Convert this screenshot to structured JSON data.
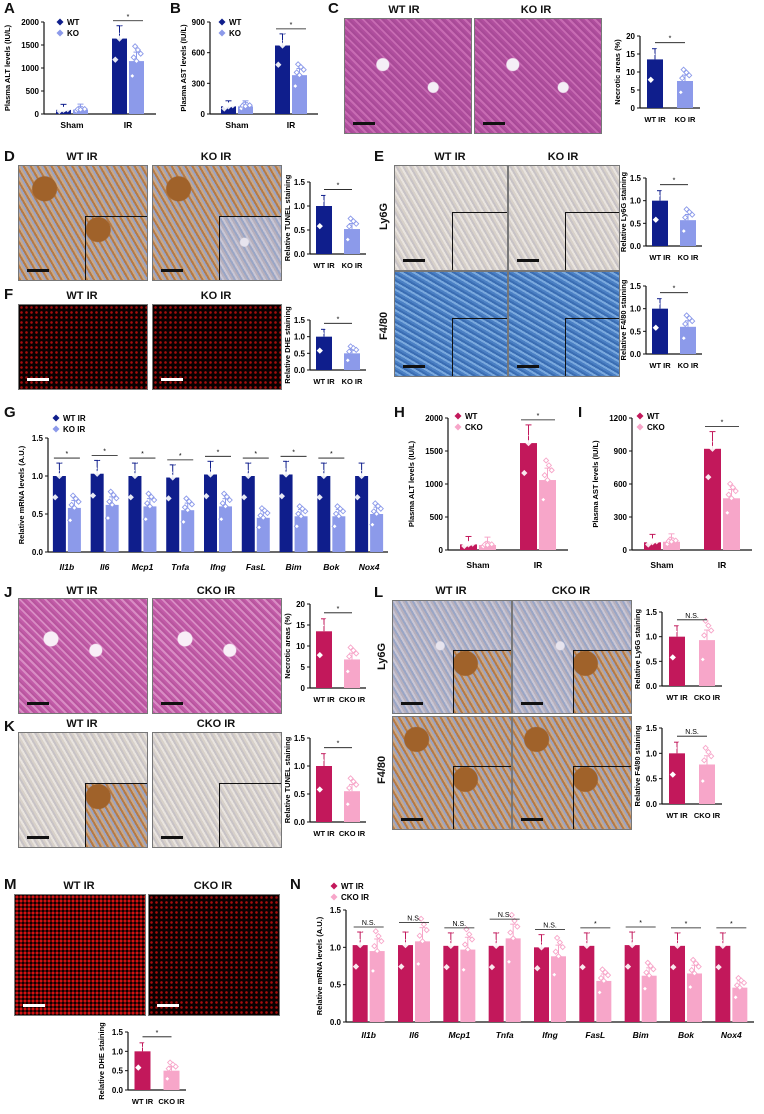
{
  "colors": {
    "wt_blue": "#0f1e8c",
    "ko_blue": "#8c9aea",
    "wt_pink": "#c2185b",
    "cko_pink": "#f7a6c9"
  },
  "labels": {
    "A": "A",
    "B": "B",
    "C": "C",
    "D": "D",
    "E": "E",
    "F": "F",
    "G": "G",
    "H": "H",
    "I": "I",
    "J": "J",
    "K": "K",
    "L": "L",
    "M": "M",
    "N": "N"
  },
  "image_titles": {
    "wt_ir": "WT IR",
    "ko_ir": "KO IR",
    "cko_ir": "CKO IR",
    "ly6g": "Ly6G",
    "f480": "F4/80"
  },
  "chart_data": [
    {
      "id": "A",
      "type": "bar",
      "ylabel": "Plasma ALT levels (IU/L)",
      "categories": [
        "Sham",
        "IR"
      ],
      "ylim": [
        0,
        2000
      ],
      "yticks": [
        0,
        500,
        1000,
        1500,
        2000
      ],
      "series": [
        {
          "name": "WT",
          "values": [
            90,
            1640
          ]
        },
        {
          "name": "KO",
          "values": [
            95,
            1150
          ]
        }
      ],
      "sig": "*"
    },
    {
      "id": "B",
      "type": "bar",
      "ylabel": "Plasma AST levels (IU/L)",
      "categories": [
        "Sham",
        "IR"
      ],
      "ylim": [
        0,
        900
      ],
      "yticks": [
        0,
        300,
        600,
        900
      ],
      "series": [
        {
          "name": "WT",
          "values": [
            75,
            670
          ]
        },
        {
          "name": "KO",
          "values": [
            75,
            380
          ]
        }
      ],
      "sig": "*"
    },
    {
      "id": "C",
      "type": "bar",
      "ylabel": "Necrotic areas (%)",
      "categories": [
        "WT IR",
        "KO IR"
      ],
      "ylim": [
        0,
        20
      ],
      "yticks": [
        0,
        5,
        10,
        15,
        20
      ],
      "values": [
        13.5,
        7.5
      ],
      "sig": "*"
    },
    {
      "id": "D",
      "type": "bar",
      "ylabel": "Relative TUNEL staining",
      "categories": [
        "WT IR",
        "KO IR"
      ],
      "ylim": [
        0,
        1.5
      ],
      "yticks": [
        0.0,
        0.5,
        1.0,
        1.5
      ],
      "values": [
        1.0,
        0.52
      ],
      "sig": "*"
    },
    {
      "id": "E1",
      "type": "bar",
      "ylabel": "Relative Ly6G staining",
      "categories": [
        "WT IR",
        "KO IR"
      ],
      "ylim": [
        0,
        1.5
      ],
      "yticks": [
        0.0,
        0.5,
        1.0,
        1.5
      ],
      "values": [
        1.0,
        0.57
      ],
      "sig": "*"
    },
    {
      "id": "E2",
      "type": "bar",
      "ylabel": "Relative F4/80 staining",
      "categories": [
        "WT IR",
        "KO IR"
      ],
      "ylim": [
        0,
        1.5
      ],
      "yticks": [
        0.0,
        0.5,
        1.0,
        1.5
      ],
      "values": [
        1.0,
        0.6
      ],
      "sig": "*"
    },
    {
      "id": "F",
      "type": "bar",
      "ylabel": "Relative DHE staining",
      "categories": [
        "WT IR",
        "KO IR"
      ],
      "ylim": [
        0,
        1.5
      ],
      "yticks": [
        0.0,
        0.5,
        1.0,
        1.5
      ],
      "values": [
        1.0,
        0.5
      ],
      "sig": "*"
    },
    {
      "id": "G",
      "type": "bar",
      "ylabel": "Relative mRNA levels (A.U.)",
      "categories": [
        "Il1b",
        "Il6",
        "Mcp1",
        "Tnfa",
        "Ifng",
        "FasL",
        "Bim",
        "Bok",
        "Nox4"
      ],
      "ylim": [
        0,
        1.5
      ],
      "yticks": [
        0.0,
        0.5,
        1.0,
        1.5
      ],
      "series": [
        {
          "name": "WT IR",
          "values": [
            1.0,
            1.03,
            1.0,
            0.98,
            1.02,
            1.0,
            1.02,
            1.0,
            1.0
          ]
        },
        {
          "name": "KO IR",
          "values": [
            0.58,
            0.62,
            0.6,
            0.55,
            0.6,
            0.45,
            0.47,
            0.47,
            0.5
          ]
        }
      ],
      "sig": [
        "*",
        "*",
        "*",
        "*",
        "*",
        "*",
        "*",
        "*",
        ""
      ]
    },
    {
      "id": "H",
      "type": "bar",
      "ylabel": "Plasma ALT levels (IU/L)",
      "categories": [
        "Sham",
        "IR"
      ],
      "ylim": [
        0,
        2000
      ],
      "yticks": [
        0,
        500,
        1000,
        1500,
        2000
      ],
      "series": [
        {
          "name": "WT",
          "values": [
            85,
            1620
          ]
        },
        {
          "name": "CKO",
          "values": [
            75,
            1060
          ]
        }
      ],
      "sig": "*"
    },
    {
      "id": "I",
      "type": "bar",
      "ylabel": "Plasma AST levels (IU/L)",
      "categories": [
        "Sham",
        "IR"
      ],
      "ylim": [
        0,
        1200
      ],
      "yticks": [
        0,
        300,
        600,
        900,
        1200
      ],
      "series": [
        {
          "name": "WT",
          "values": [
            70,
            920
          ]
        },
        {
          "name": "CKO",
          "values": [
            75,
            470
          ]
        }
      ],
      "sig": "*"
    },
    {
      "id": "J",
      "type": "bar",
      "ylabel": "Necrotic areas (%)",
      "categories": [
        "WT IR",
        "CKO IR"
      ],
      "ylim": [
        0,
        20
      ],
      "yticks": [
        0,
        5,
        10,
        15,
        20
      ],
      "values": [
        13.5,
        6.8
      ],
      "sig": "*"
    },
    {
      "id": "K",
      "type": "bar",
      "ylabel": "Relative TUNEL staining",
      "categories": [
        "WT IR",
        "CKO IR"
      ],
      "ylim": [
        0,
        1.5
      ],
      "yticks": [
        0.0,
        0.5,
        1.0,
        1.5
      ],
      "values": [
        1.0,
        0.55
      ],
      "sig": "*"
    },
    {
      "id": "L1",
      "type": "bar",
      "ylabel": "Relative Ly6G staining",
      "categories": [
        "WT IR",
        "CKO IR"
      ],
      "ylim": [
        0,
        1.5
      ],
      "yticks": [
        0.0,
        0.5,
        1.0,
        1.5
      ],
      "values": [
        1.0,
        0.93
      ],
      "sig": "N.S."
    },
    {
      "id": "L2",
      "type": "bar",
      "ylabel": "Relative F4/80 staining",
      "categories": [
        "WT IR",
        "CKO IR"
      ],
      "ylim": [
        0,
        1.5
      ],
      "yticks": [
        0.0,
        0.5,
        1.0,
        1.5
      ],
      "values": [
        1.0,
        0.78
      ],
      "sig": "N.S."
    },
    {
      "id": "M",
      "type": "bar",
      "ylabel": "Relative DHE staining",
      "categories": [
        "WT IR",
        "CKO IR"
      ],
      "ylim": [
        0,
        1.5
      ],
      "yticks": [
        0.0,
        0.5,
        1.0,
        1.5
      ],
      "values": [
        1.0,
        0.5
      ],
      "sig": "*"
    },
    {
      "id": "N",
      "type": "bar",
      "ylabel": "Relative mRNA levels (A.U.)",
      "categories": [
        "Il1b",
        "Il6",
        "Mcp1",
        "Tnfa",
        "Ifng",
        "FasL",
        "Bim",
        "Bok",
        "Nox4"
      ],
      "ylim": [
        0,
        1.5
      ],
      "yticks": [
        0.0,
        0.5,
        1.0,
        1.5
      ],
      "series": [
        {
          "name": "WT IR",
          "values": [
            1.03,
            1.03,
            1.02,
            1.02,
            1.0,
            1.02,
            1.03,
            1.02,
            1.02
          ]
        },
        {
          "name": "CKO IR",
          "values": [
            0.95,
            1.08,
            0.97,
            1.12,
            0.88,
            0.55,
            0.62,
            0.65,
            0.46
          ]
        }
      ],
      "sig": [
        "N.S.",
        "N.S.",
        "N.S.",
        "N.S.",
        "N.S.",
        "*",
        "*",
        "*",
        "*"
      ]
    }
  ]
}
